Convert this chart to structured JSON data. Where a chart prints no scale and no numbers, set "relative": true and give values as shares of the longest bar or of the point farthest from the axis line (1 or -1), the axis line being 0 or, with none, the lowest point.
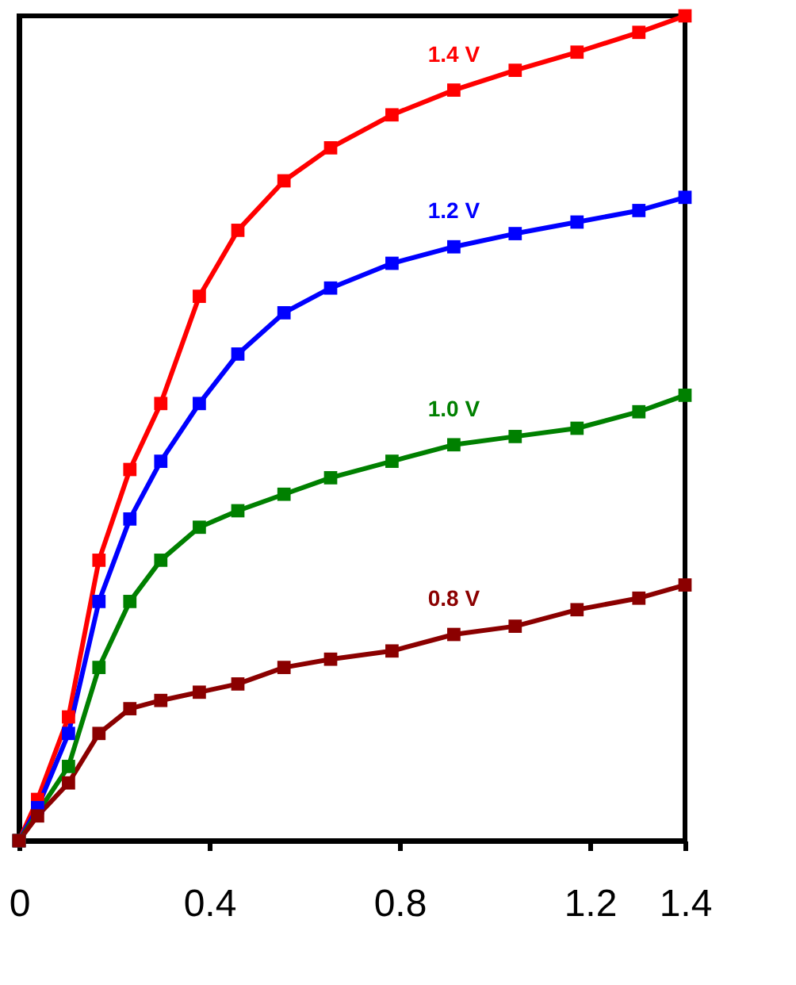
{
  "chart_data": {
    "type": "line",
    "relative": true,
    "marker": "square",
    "tick_labels": "x",
    "grid": false,
    "legend": false,
    "x": [
      0,
      0.039,
      0.104,
      0.168,
      0.233,
      0.298,
      0.379,
      0.46,
      0.557,
      0.655,
      0.784,
      0.914,
      1.043,
      1.173,
      1.303,
      1.4
    ],
    "xlim": [
      0,
      1.4
    ],
    "xticks": [
      0,
      0.4,
      0.8,
      1.2,
      1.4
    ],
    "series": [
      {
        "name": "1.4 V",
        "color": "#ff0000",
        "values": [
          0,
          0.05,
          0.15,
          0.34,
          0.45,
          0.53,
          0.66,
          0.74,
          0.8,
          0.84,
          0.88,
          0.91,
          0.934,
          0.956,
          0.98,
          1
        ]
      },
      {
        "name": "1.2 V",
        "color": "#0000ff",
        "values": [
          0,
          0.04,
          0.13,
          0.29,
          0.39,
          0.46,
          0.53,
          0.59,
          0.64,
          0.67,
          0.7,
          0.72,
          0.736,
          0.75,
          0.764,
          0.78
        ]
      },
      {
        "name": "1.0 V",
        "color": "#008000",
        "values": [
          0,
          null,
          0.09,
          0.21,
          0.29,
          0.34,
          0.38,
          0.4,
          0.42,
          0.44,
          0.46,
          0.48,
          0.49,
          0.5,
          0.52,
          0.54
        ]
      },
      {
        "name": "0.8 V",
        "color": "#8b0000",
        "values": [
          0,
          0.03,
          0.07,
          0.13,
          0.16,
          0.17,
          0.18,
          0.19,
          0.21,
          0.22,
          0.23,
          0.25,
          0.26,
          0.28,
          0.294,
          0.31
        ]
      }
    ]
  }
}
